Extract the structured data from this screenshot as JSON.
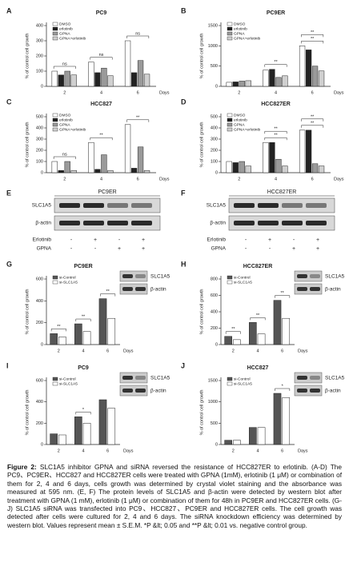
{
  "chart_data": [
    {
      "panel": "A",
      "type": "bar",
      "title": "PC9",
      "ylabel": "% of control cell growth",
      "xlabel": "Days",
      "categories": [
        "2",
        "4",
        "6"
      ],
      "series": [
        {
          "name": "DMSO",
          "color": "#ffffff",
          "values": [
            100,
            160,
            300
          ]
        },
        {
          "name": "erlotinib",
          "color": "#222222",
          "values": [
            75,
            90,
            90
          ]
        },
        {
          "name": "GPNA",
          "color": "#9a9a9a",
          "values": [
            100,
            120,
            170
          ]
        },
        {
          "name": "GPNA+erlotinib",
          "color": "#d0d0d0",
          "values": [
            75,
            70,
            80
          ]
        }
      ],
      "ylim": [
        0,
        400
      ],
      "yticks": [
        0,
        100,
        200,
        300,
        400
      ],
      "annotations": [
        {
          "text": "ns",
          "category": "2"
        },
        {
          "text": "ns",
          "category": "4"
        },
        {
          "text": "ns",
          "category": "6"
        }
      ]
    },
    {
      "panel": "B",
      "type": "bar",
      "title": "PC9ER",
      "ylabel": "% of control cell growth",
      "xlabel": "Days",
      "categories": [
        "2",
        "4",
        "6"
      ],
      "series": [
        {
          "name": "DMSO",
          "color": "#ffffff",
          "values": [
            100,
            400,
            1000
          ]
        },
        {
          "name": "erlotinib",
          "color": "#222222",
          "values": [
            110,
            420,
            900
          ]
        },
        {
          "name": "GPNA",
          "color": "#9a9a9a",
          "values": [
            130,
            220,
            500
          ]
        },
        {
          "name": "GPNA+erlotinib",
          "color": "#d0d0d0",
          "values": [
            140,
            260,
            380
          ]
        }
      ],
      "ylim": [
        0,
        1500
      ],
      "yticks": [
        0,
        500,
        1000,
        1500
      ],
      "annotations": [
        {
          "text": "**",
          "category": "4"
        },
        {
          "text": "**",
          "category": "6"
        },
        {
          "text": "**",
          "category": "6"
        }
      ]
    },
    {
      "panel": "C",
      "type": "bar",
      "title": "HCC827",
      "ylabel": "% of control cell growth",
      "xlabel": "Days",
      "categories": [
        "2",
        "4",
        "6"
      ],
      "series": [
        {
          "name": "DMSO",
          "color": "#ffffff",
          "values": [
            100,
            270,
            430
          ]
        },
        {
          "name": "erlotinib",
          "color": "#222222",
          "values": [
            20,
            30,
            40
          ]
        },
        {
          "name": "GPNA",
          "color": "#9a9a9a",
          "values": [
            100,
            160,
            230
          ]
        },
        {
          "name": "GPNA+erlotinib",
          "color": "#d0d0d0",
          "values": [
            20,
            20,
            20
          ]
        }
      ],
      "ylim": [
        0,
        500
      ],
      "yticks": [
        0,
        100,
        200,
        300,
        400,
        500
      ],
      "annotations": [
        {
          "text": "ns",
          "category": "2"
        },
        {
          "text": "**",
          "category": "4"
        },
        {
          "text": "**",
          "category": "6"
        }
      ]
    },
    {
      "panel": "D",
      "type": "bar",
      "title": "HCC827ER",
      "ylabel": "% of control cell growth",
      "xlabel": "Days",
      "categories": [
        "2",
        "4",
        "6"
      ],
      "series": [
        {
          "name": "DMSO",
          "color": "#ffffff",
          "values": [
            100,
            270,
            380
          ]
        },
        {
          "name": "erlotinib",
          "color": "#222222",
          "values": [
            90,
            270,
            380
          ]
        },
        {
          "name": "GPNA",
          "color": "#9a9a9a",
          "values": [
            100,
            120,
            80
          ]
        },
        {
          "name": "GPNA+erlotinib",
          "color": "#d0d0d0",
          "values": [
            60,
            60,
            60
          ]
        }
      ],
      "ylim": [
        0,
        500
      ],
      "yticks": [
        0,
        100,
        200,
        300,
        400,
        500
      ],
      "annotations": [
        {
          "text": "**",
          "category": "4"
        },
        {
          "text": "**",
          "category": "4"
        },
        {
          "text": "**",
          "category": "6"
        },
        {
          "text": "**",
          "category": "6"
        }
      ]
    },
    {
      "panel": "G",
      "type": "bar",
      "title": "PC9ER",
      "ylabel": "% of control cell growth",
      "xlabel": "Days",
      "categories": [
        "2",
        "4",
        "6"
      ],
      "series": [
        {
          "name": "si-Control",
          "color": "#555555",
          "values": [
            100,
            190,
            420
          ]
        },
        {
          "name": "si-SLC1A5",
          "color": "#ffffff",
          "values": [
            70,
            120,
            240
          ]
        }
      ],
      "ylim": [
        0,
        600
      ],
      "yticks": [
        0,
        200,
        400,
        600
      ],
      "annotations": [
        {
          "text": "**",
          "category": "2"
        },
        {
          "text": "**",
          "category": "4"
        },
        {
          "text": "**",
          "category": "6"
        }
      ],
      "inset_blot": [
        "SLC1A5",
        "β-actin"
      ]
    },
    {
      "panel": "H",
      "type": "bar",
      "title": "HCC827ER",
      "ylabel": "% of control cell growth",
      "xlabel": "Days",
      "categories": [
        "2",
        "4",
        "6"
      ],
      "series": [
        {
          "name": "si-Control",
          "color": "#555555",
          "values": [
            100,
            270,
            540
          ]
        },
        {
          "name": "si-SLC1A5",
          "color": "#ffffff",
          "values": [
            60,
            130,
            320
          ]
        }
      ],
      "ylim": [
        0,
        800
      ],
      "yticks": [
        0,
        200,
        400,
        600,
        800
      ],
      "annotations": [
        {
          "text": "**",
          "category": "2"
        },
        {
          "text": "**",
          "category": "4"
        },
        {
          "text": "**",
          "category": "6"
        }
      ],
      "inset_blot": [
        "SLC1A5",
        "β-actin"
      ]
    },
    {
      "panel": "I",
      "type": "bar",
      "title": "PC9",
      "ylabel": "% of control cell growth",
      "xlabel": "Days",
      "categories": [
        "2",
        "4",
        "6"
      ],
      "series": [
        {
          "name": "si-Control",
          "color": "#555555",
          "values": [
            100,
            260,
            420
          ]
        },
        {
          "name": "si-SLC1A5",
          "color": "#ffffff",
          "values": [
            90,
            200,
            340
          ]
        }
      ],
      "ylim": [
        0,
        600
      ],
      "yticks": [
        0,
        200,
        400,
        600
      ],
      "annotations": [
        {
          "text": "*",
          "category": "4"
        }
      ],
      "inset_blot": [
        "SLC1A5",
        "β-actin"
      ]
    },
    {
      "panel": "J",
      "type": "bar",
      "title": "HCC827",
      "ylabel": "% of control cell growth",
      "xlabel": "Days",
      "categories": [
        "2",
        "4",
        "6"
      ],
      "series": [
        {
          "name": "si-Control",
          "color": "#555555",
          "values": [
            100,
            400,
            1200
          ]
        },
        {
          "name": "si-SLC1A5",
          "color": "#ffffff",
          "values": [
            100,
            400,
            1100
          ]
        }
      ],
      "ylim": [
        0,
        1500
      ],
      "yticks": [
        0,
        500,
        1000,
        1500
      ],
      "annotations": [
        {
          "text": "*",
          "category": "6"
        }
      ],
      "inset_blot": [
        "SLC1A5",
        "β-actin"
      ]
    }
  ],
  "blots": [
    {
      "panel": "E",
      "title": "PC9ER",
      "rows": [
        "SLC1A5",
        "β-actin"
      ],
      "treatments": [
        {
          "name": "Erlotinib",
          "lanes": [
            "-",
            "+",
            "-",
            "+"
          ]
        },
        {
          "name": "GPNA",
          "lanes": [
            "-",
            "-",
            "+",
            "+"
          ]
        }
      ]
    },
    {
      "panel": "F",
      "title": "HCC827ER",
      "rows": [
        "SLC1A5",
        "β-actin"
      ],
      "treatments": [
        {
          "name": "Erlotinib",
          "lanes": [
            "-",
            "+",
            "-",
            "+"
          ]
        },
        {
          "name": "GPNA",
          "lanes": [
            "-",
            "-",
            "+",
            "+"
          ]
        }
      ]
    }
  ],
  "caption": {
    "label": "Figure 2:",
    "text": "SLC1A5 inhibitor GPNA and siRNA reversed the resistance of HCC827ER to erlotinib. (A-D) The PC9、PC9ER、HCC827 and HCC827ER cells were treated with GPNA (1mM), erlotinib (1 μM) or combination of them for 2, 4 and 6 days, cells growth was determined by crystal violet staining and the absorbance was measured at 595 nm. (E, F) The protein levels of SLC1A5 and β-actin were detected by western blot after treatment with GPNA (1 mM), erlotinib (1 μM) or combination of them for 48h in PC9ER and HCC827ER cells. (G-J) SLC1A5 siRNA was transfected into PC9、HCC827、PC9ER and HCC827ER cells. The cell growth was detected after cells were cultured for 2, 4 and 6 days. The siRNA knockdown efficiency was determined by western blot. Values represent mean ± S.E.M. *P &lt; 0.05 and **P &lt; 0.01 vs. negative control group."
  }
}
